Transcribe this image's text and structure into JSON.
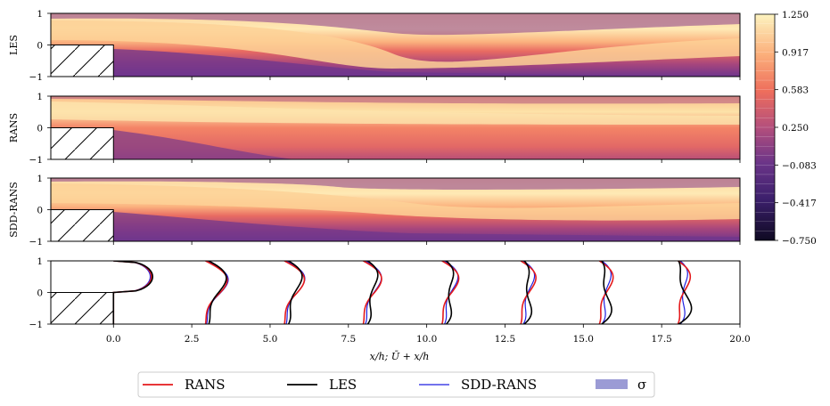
{
  "chart_data": {
    "type": "contour+line",
    "xlabel": "x/h;   Ū + x/h",
    "xlim": [
      -2,
      20
    ],
    "ylim": [
      -1,
      1
    ],
    "xticks": [
      "0.0",
      "2.5",
      "5.0",
      "7.5",
      "10.0",
      "12.5",
      "15.0",
      "17.5",
      "20.0"
    ],
    "xtick_values": [
      0,
      2.5,
      5,
      7.5,
      10,
      12.5,
      15,
      17.5,
      20
    ],
    "yticks": [
      "1",
      "0",
      "−1"
    ],
    "panels": [
      {
        "label": "LES"
      },
      {
        "label": "RANS"
      },
      {
        "label": "SDD-RANS"
      }
    ],
    "colorbar": {
      "min": -0.75,
      "max": 1.25,
      "ticks": [
        "1.250",
        "0.917",
        "0.583",
        "0.250",
        "−0.083",
        "−0.417",
        "−0.750"
      ],
      "colormap": "magma"
    },
    "profile_stations": [
      0,
      2.5,
      5,
      7.5,
      10,
      12.5,
      15,
      17.5
    ],
    "legend": [
      {
        "label": "RANS",
        "color": "#e41a1c",
        "kind": "line"
      },
      {
        "label": "LES",
        "color": "#000000",
        "kind": "line"
      },
      {
        "label": "SDD-RANS",
        "color": "#1f1fe0",
        "kind": "line"
      },
      {
        "label": "σ",
        "color": "#9b9bd5",
        "kind": "patch"
      }
    ]
  }
}
